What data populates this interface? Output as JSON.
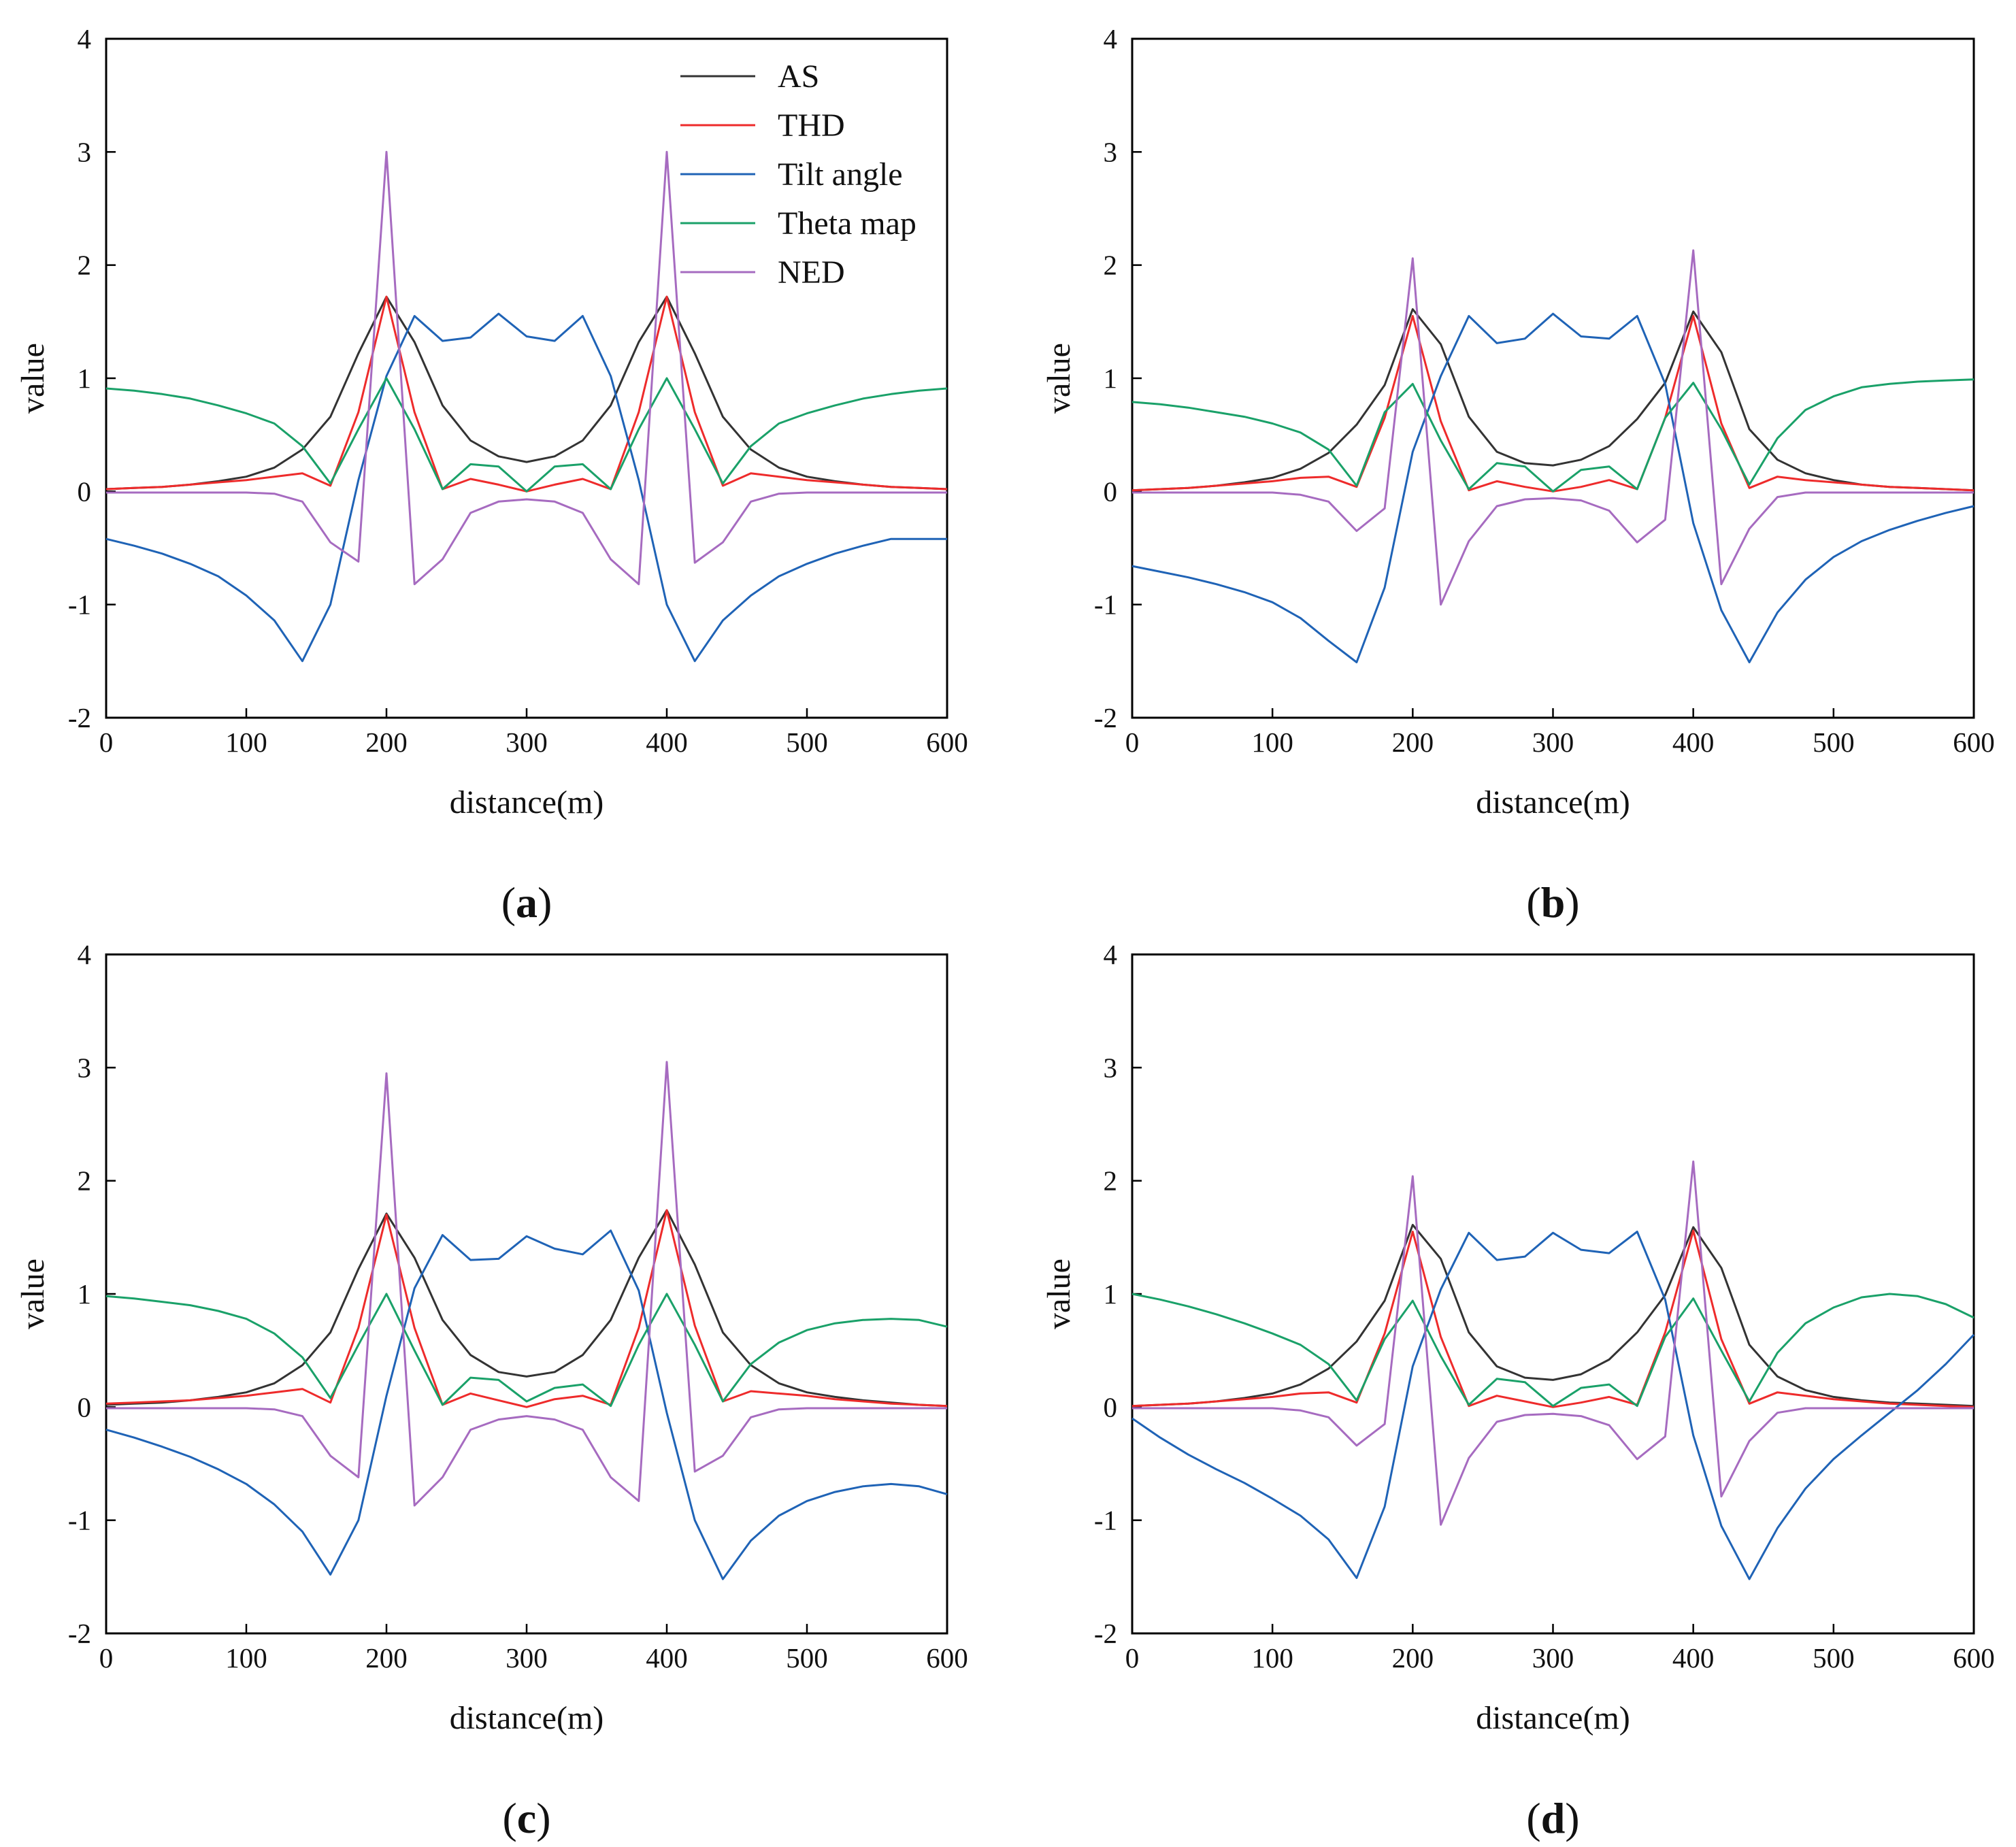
{
  "figure": {
    "colors": {
      "AS": "#333333",
      "THD": "#ee2b2b",
      "Tilt angle": "#1f63b6",
      "Theta map": "#1aa169",
      "NED": "#a66bc0"
    },
    "legend": [
      "AS",
      "THD",
      "Tilt angle",
      "Theta map",
      "NED"
    ]
  },
  "chart_data": [
    {
      "type": "line",
      "label_open": "(",
      "label_letter": "a",
      "label_close": ")",
      "xlabel": "distance(m)",
      "ylabel": "value",
      "xlim": [
        0,
        600
      ],
      "ylim": [
        -2,
        4
      ],
      "xticks": [
        0,
        100,
        200,
        300,
        400,
        500,
        600
      ],
      "yticks": [
        -2,
        -1,
        0,
        1,
        2,
        3,
        4
      ],
      "x": [
        0,
        20,
        40,
        60,
        80,
        100,
        120,
        140,
        160,
        180,
        200,
        220,
        240,
        260,
        280,
        300,
        320,
        340,
        360,
        380,
        400,
        420,
        440,
        460,
        480,
        500,
        520,
        540,
        560,
        580,
        600
      ],
      "series": [
        {
          "name": "AS",
          "values": [
            0.02,
            0.03,
            0.04,
            0.06,
            0.09,
            0.13,
            0.21,
            0.37,
            0.66,
            1.22,
            1.72,
            1.32,
            0.76,
            0.45,
            0.31,
            0.26,
            0.31,
            0.45,
            0.76,
            1.32,
            1.72,
            1.22,
            0.66,
            0.37,
            0.21,
            0.13,
            0.09,
            0.06,
            0.04,
            0.03,
            0.02
          ]
        },
        {
          "name": "THD",
          "values": [
            0.02,
            0.03,
            0.04,
            0.06,
            0.08,
            0.1,
            0.13,
            0.16,
            0.05,
            0.7,
            1.72,
            0.7,
            0.02,
            0.11,
            0.06,
            0.0,
            0.06,
            0.11,
            0.02,
            0.7,
            1.72,
            0.7,
            0.05,
            0.16,
            0.13,
            0.1,
            0.08,
            0.06,
            0.04,
            0.03,
            0.02
          ]
        },
        {
          "name": "Tilt angle",
          "values": [
            -0.42,
            -0.48,
            -0.55,
            -0.64,
            -0.75,
            -0.92,
            -1.14,
            -1.5,
            -1.0,
            0.1,
            1.02,
            1.55,
            1.33,
            1.36,
            1.57,
            1.37,
            1.33,
            1.55,
            1.02,
            0.1,
            -1.0,
            -1.5,
            -1.14,
            -0.92,
            -0.75,
            -0.64,
            -0.55,
            -0.48,
            -0.42,
            -0.42,
            -0.42
          ]
        },
        {
          "name": "Theta map",
          "values": [
            0.91,
            0.89,
            0.86,
            0.82,
            0.76,
            0.69,
            0.6,
            0.4,
            0.07,
            0.55,
            1.0,
            0.55,
            0.02,
            0.24,
            0.22,
            0.0,
            0.22,
            0.24,
            0.02,
            0.55,
            1.0,
            0.55,
            0.07,
            0.4,
            0.6,
            0.69,
            0.76,
            0.82,
            0.86,
            0.89,
            0.91
          ]
        },
        {
          "name": "NED",
          "values": [
            -0.01,
            -0.01,
            -0.01,
            -0.01,
            -0.01,
            -0.01,
            -0.02,
            -0.09,
            -0.45,
            -0.62,
            3.0,
            -0.82,
            -0.6,
            -0.19,
            -0.09,
            -0.07,
            -0.09,
            -0.19,
            -0.6,
            -0.82,
            3.0,
            -0.63,
            -0.45,
            -0.09,
            -0.02,
            -0.01,
            -0.01,
            -0.01,
            -0.01,
            -0.01,
            -0.01
          ]
        }
      ]
    },
    {
      "type": "line",
      "label_open": "(",
      "label_letter": "b",
      "label_close": ")",
      "xlabel": "distance(m)",
      "ylabel": "value",
      "xlim": [
        0,
        600
      ],
      "ylim": [
        -2,
        4
      ],
      "xticks": [
        0,
        100,
        200,
        300,
        400,
        500,
        600
      ],
      "yticks": [
        -2,
        -1,
        0,
        1,
        2,
        3,
        4
      ],
      "x": [
        0,
        20,
        40,
        60,
        80,
        100,
        120,
        140,
        160,
        180,
        200,
        220,
        240,
        260,
        280,
        300,
        320,
        340,
        360,
        380,
        400,
        420,
        440,
        460,
        480,
        500,
        520,
        540,
        560,
        580,
        600
      ],
      "series": [
        {
          "name": "AS",
          "values": [
            0.01,
            0.02,
            0.03,
            0.05,
            0.08,
            0.12,
            0.2,
            0.34,
            0.59,
            0.94,
            1.61,
            1.3,
            0.66,
            0.35,
            0.25,
            0.23,
            0.28,
            0.4,
            0.64,
            0.96,
            1.59,
            1.23,
            0.55,
            0.28,
            0.16,
            0.1,
            0.06,
            0.04,
            0.03,
            0.02,
            0.01
          ]
        },
        {
          "name": "THD",
          "values": [
            0.01,
            0.02,
            0.03,
            0.05,
            0.07,
            0.09,
            0.12,
            0.13,
            0.04,
            0.65,
            1.55,
            0.62,
            0.01,
            0.09,
            0.04,
            0.0,
            0.04,
            0.1,
            0.02,
            0.65,
            1.55,
            0.6,
            0.03,
            0.13,
            0.1,
            0.08,
            0.06,
            0.04,
            0.03,
            0.02,
            0.01
          ]
        },
        {
          "name": "Tilt angle",
          "values": [
            -0.66,
            -0.71,
            -0.76,
            -0.82,
            -0.89,
            -0.98,
            -1.12,
            -1.32,
            -1.51,
            -0.85,
            0.35,
            1.02,
            1.55,
            1.31,
            1.35,
            1.57,
            1.37,
            1.35,
            1.55,
            0.95,
            -0.28,
            -1.05,
            -1.51,
            -1.07,
            -0.78,
            -0.58,
            -0.44,
            -0.34,
            -0.26,
            -0.19,
            -0.13
          ]
        },
        {
          "name": "Theta map",
          "values": [
            0.79,
            0.77,
            0.74,
            0.7,
            0.66,
            0.6,
            0.52,
            0.37,
            0.05,
            0.7,
            0.95,
            0.45,
            0.02,
            0.25,
            0.22,
            0.0,
            0.19,
            0.22,
            0.02,
            0.65,
            0.96,
            0.55,
            0.06,
            0.47,
            0.72,
            0.84,
            0.92,
            0.95,
            0.97,
            0.98,
            0.99
          ]
        },
        {
          "name": "NED",
          "values": [
            -0.01,
            -0.01,
            -0.01,
            -0.01,
            -0.01,
            -0.01,
            -0.03,
            -0.09,
            -0.35,
            -0.15,
            2.06,
            -1.0,
            -0.44,
            -0.13,
            -0.07,
            -0.06,
            -0.08,
            -0.17,
            -0.45,
            -0.25,
            2.13,
            -0.82,
            -0.33,
            -0.05,
            -0.01,
            -0.01,
            -0.01,
            -0.01,
            -0.01,
            -0.01,
            -0.01
          ]
        }
      ]
    },
    {
      "type": "line",
      "label_open": "(",
      "label_letter": "c",
      "label_close": ")",
      "xlabel": "distance(m)",
      "ylabel": "value",
      "xlim": [
        0,
        600
      ],
      "ylim": [
        -2,
        4
      ],
      "xticks": [
        0,
        100,
        200,
        300,
        400,
        500,
        600
      ],
      "yticks": [
        -2,
        -1,
        0,
        1,
        2,
        3,
        4
      ],
      "x": [
        0,
        20,
        40,
        60,
        80,
        100,
        120,
        140,
        160,
        180,
        200,
        220,
        240,
        260,
        280,
        300,
        320,
        340,
        360,
        380,
        400,
        420,
        440,
        460,
        480,
        500,
        520,
        540,
        560,
        580,
        600
      ],
      "series": [
        {
          "name": "AS",
          "values": [
            0.02,
            0.03,
            0.04,
            0.06,
            0.09,
            0.13,
            0.21,
            0.37,
            0.66,
            1.22,
            1.71,
            1.32,
            0.77,
            0.46,
            0.31,
            0.27,
            0.31,
            0.46,
            0.77,
            1.32,
            1.74,
            1.26,
            0.66,
            0.37,
            0.21,
            0.13,
            0.09,
            0.06,
            0.04,
            0.02,
            0.01
          ]
        },
        {
          "name": "THD",
          "values": [
            0.03,
            0.04,
            0.05,
            0.06,
            0.08,
            0.1,
            0.13,
            0.16,
            0.04,
            0.7,
            1.7,
            0.7,
            0.02,
            0.12,
            0.06,
            0.0,
            0.07,
            0.1,
            0.02,
            0.7,
            1.74,
            0.72,
            0.05,
            0.14,
            0.12,
            0.1,
            0.07,
            0.05,
            0.03,
            0.02,
            0.01
          ]
        },
        {
          "name": "Tilt angle",
          "values": [
            -0.2,
            -0.27,
            -0.35,
            -0.44,
            -0.55,
            -0.68,
            -0.86,
            -1.1,
            -1.48,
            -1.0,
            0.1,
            1.05,
            1.52,
            1.3,
            1.31,
            1.51,
            1.4,
            1.35,
            1.56,
            1.03,
            -0.05,
            -1.0,
            -1.52,
            -1.18,
            -0.96,
            -0.83,
            -0.75,
            -0.7,
            -0.68,
            -0.7,
            -0.77
          ]
        },
        {
          "name": "Theta map",
          "values": [
            0.98,
            0.96,
            0.93,
            0.9,
            0.85,
            0.78,
            0.65,
            0.44,
            0.08,
            0.55,
            1.0,
            0.5,
            0.02,
            0.26,
            0.24,
            0.05,
            0.17,
            0.2,
            0.01,
            0.55,
            1.0,
            0.55,
            0.05,
            0.38,
            0.57,
            0.68,
            0.74,
            0.77,
            0.78,
            0.77,
            0.71
          ]
        },
        {
          "name": "NED",
          "values": [
            -0.01,
            -0.01,
            -0.01,
            -0.01,
            -0.01,
            -0.01,
            -0.02,
            -0.08,
            -0.43,
            -0.62,
            2.95,
            -0.87,
            -0.62,
            -0.2,
            -0.11,
            -0.08,
            -0.11,
            -0.2,
            -0.62,
            -0.83,
            3.05,
            -0.57,
            -0.43,
            -0.09,
            -0.02,
            -0.01,
            -0.01,
            -0.01,
            -0.01,
            -0.01,
            -0.01
          ]
        }
      ]
    },
    {
      "type": "line",
      "label_open": "(",
      "label_letter": "d",
      "label_close": ")",
      "xlabel": "distance(m)",
      "ylabel": "value",
      "xlim": [
        0,
        600
      ],
      "ylim": [
        -2,
        4
      ],
      "xticks": [
        0,
        100,
        200,
        300,
        400,
        500,
        600
      ],
      "yticks": [
        -2,
        -1,
        0,
        1,
        2,
        3,
        4
      ],
      "x": [
        0,
        20,
        40,
        60,
        80,
        100,
        120,
        140,
        160,
        180,
        200,
        220,
        240,
        260,
        280,
        300,
        320,
        340,
        360,
        380,
        400,
        420,
        440,
        460,
        480,
        500,
        520,
        540,
        560,
        580,
        600
      ],
      "series": [
        {
          "name": "AS",
          "values": [
            0.01,
            0.02,
            0.03,
            0.05,
            0.08,
            0.12,
            0.2,
            0.34,
            0.58,
            0.94,
            1.61,
            1.31,
            0.66,
            0.36,
            0.26,
            0.24,
            0.29,
            0.42,
            0.66,
            0.99,
            1.59,
            1.23,
            0.55,
            0.27,
            0.15,
            0.09,
            0.06,
            0.04,
            0.03,
            0.02,
            0.01
          ]
        },
        {
          "name": "THD",
          "values": [
            0.01,
            0.02,
            0.03,
            0.05,
            0.07,
            0.09,
            0.12,
            0.13,
            0.04,
            0.65,
            1.55,
            0.62,
            0.01,
            0.1,
            0.05,
            0.0,
            0.04,
            0.09,
            0.02,
            0.66,
            1.56,
            0.6,
            0.03,
            0.13,
            0.1,
            0.07,
            0.05,
            0.03,
            0.02,
            0.01,
            0.0
          ]
        },
        {
          "name": "Tilt angle",
          "values": [
            -0.1,
            -0.27,
            -0.42,
            -0.55,
            -0.67,
            -0.81,
            -0.96,
            -1.17,
            -1.51,
            -0.88,
            0.36,
            1.04,
            1.54,
            1.3,
            1.33,
            1.54,
            1.39,
            1.36,
            1.55,
            0.95,
            -0.25,
            -1.05,
            -1.52,
            -1.07,
            -0.72,
            -0.46,
            -0.25,
            -0.05,
            0.15,
            0.38,
            0.64
          ]
        },
        {
          "name": "Theta map",
          "values": [
            1.0,
            0.95,
            0.89,
            0.82,
            0.74,
            0.65,
            0.55,
            0.38,
            0.06,
            0.6,
            0.94,
            0.45,
            0.02,
            0.25,
            0.22,
            0.01,
            0.17,
            0.2,
            0.01,
            0.62,
            0.96,
            0.5,
            0.05,
            0.48,
            0.74,
            0.88,
            0.97,
            1.0,
            0.98,
            0.91,
            0.79
          ]
        },
        {
          "name": "NED",
          "values": [
            -0.01,
            -0.01,
            -0.01,
            -0.01,
            -0.01,
            -0.01,
            -0.03,
            -0.09,
            -0.34,
            -0.15,
            2.04,
            -1.04,
            -0.45,
            -0.13,
            -0.07,
            -0.06,
            -0.08,
            -0.16,
            -0.46,
            -0.26,
            2.17,
            -0.79,
            -0.3,
            -0.05,
            -0.01,
            -0.01,
            -0.01,
            -0.01,
            -0.01,
            -0.01,
            -0.01
          ]
        }
      ]
    }
  ]
}
